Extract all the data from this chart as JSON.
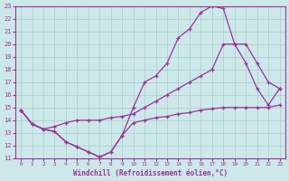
{
  "xlabel": "Windchill (Refroidissement éolien,°C)",
  "xlim": [
    -0.5,
    23.5
  ],
  "ylim": [
    11,
    23
  ],
  "xticks": [
    0,
    1,
    2,
    3,
    4,
    5,
    6,
    7,
    8,
    9,
    10,
    11,
    12,
    13,
    14,
    15,
    16,
    17,
    18,
    19,
    20,
    21,
    22,
    23
  ],
  "yticks": [
    11,
    12,
    13,
    14,
    15,
    16,
    17,
    18,
    19,
    20,
    21,
    22,
    23
  ],
  "bg_color": "#cce8e8",
  "grid_color": "#aacccc",
  "line_color": "#993399",
  "line1_x": [
    0,
    1,
    2,
    3,
    4,
    5,
    6,
    7,
    8,
    9,
    10,
    11,
    12,
    13,
    14,
    15,
    16,
    17,
    18,
    19,
    20,
    21,
    22,
    23
  ],
  "line1_y": [
    14.8,
    13.7,
    13.3,
    13.1,
    12.3,
    11.9,
    11.5,
    11.1,
    11.5,
    12.8,
    15.0,
    17.0,
    17.5,
    18.5,
    20.5,
    21.2,
    22.5,
    23.0,
    22.8,
    20.0,
    18.5,
    16.5,
    15.2,
    16.5
  ],
  "line2_x": [
    0,
    1,
    2,
    3,
    4,
    5,
    6,
    7,
    8,
    9,
    10,
    11,
    12,
    13,
    14,
    15,
    16,
    17,
    18,
    19,
    20,
    21,
    22,
    23
  ],
  "line2_y": [
    14.8,
    13.7,
    13.3,
    13.5,
    13.8,
    14.0,
    14.0,
    14.0,
    14.2,
    14.3,
    14.5,
    15.0,
    15.5,
    16.0,
    16.5,
    17.0,
    17.5,
    18.0,
    20.0,
    20.0,
    20.0,
    18.5,
    17.0,
    16.5
  ],
  "line3_x": [
    0,
    1,
    2,
    3,
    4,
    5,
    6,
    7,
    8,
    9,
    10,
    11,
    12,
    13,
    14,
    15,
    16,
    17,
    18,
    19,
    20,
    21,
    22,
    23
  ],
  "line3_y": [
    14.8,
    13.7,
    13.3,
    13.1,
    12.3,
    11.9,
    11.5,
    11.1,
    11.5,
    12.8,
    13.8,
    14.0,
    14.2,
    14.3,
    14.5,
    14.6,
    14.8,
    14.9,
    15.0,
    15.0,
    15.0,
    15.0,
    15.0,
    15.2
  ]
}
